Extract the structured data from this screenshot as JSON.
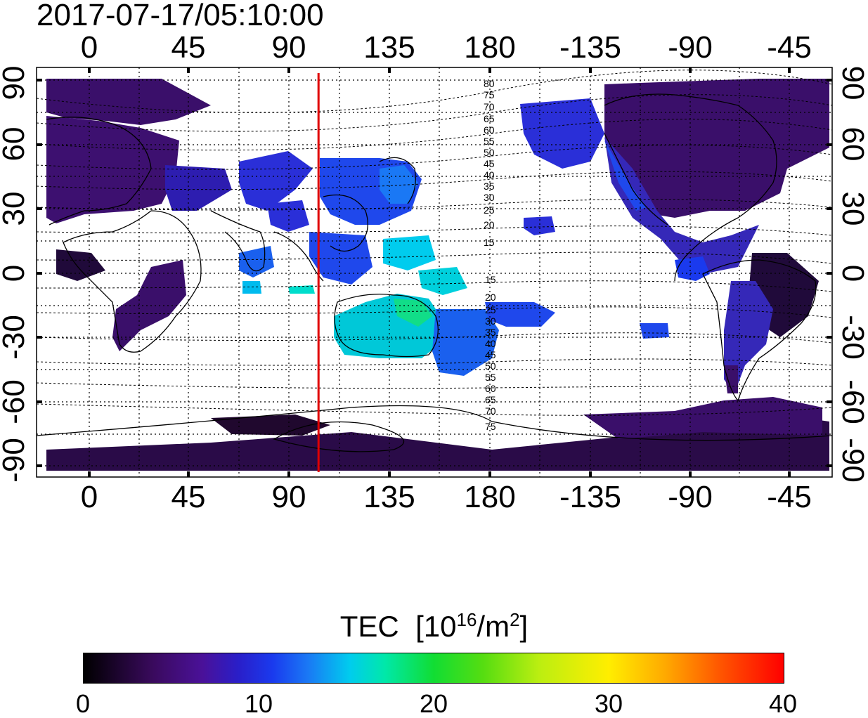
{
  "title": "2017-07-17/05:10:00",
  "x_ticks_top": [
    "0",
    "45",
    "90",
    "135",
    "180",
    "-135",
    "-90",
    "-45"
  ],
  "x_ticks_bottom": [
    "0",
    "45",
    "90",
    "135",
    "180",
    "-135",
    "-90",
    "-45"
  ],
  "y_ticks_left": [
    "90",
    "60",
    "30",
    "0",
    "-30",
    "-60",
    "-90"
  ],
  "y_ticks_right": [
    "90",
    "60",
    "30",
    "0",
    "-30",
    "-60",
    "-90"
  ],
  "contour_labels_north": [
    "80",
    "75",
    "70",
    "65",
    "60",
    "55",
    "50",
    "45",
    "40",
    "35",
    "30",
    "25",
    "20",
    "15"
  ],
  "contour_labels_south": [
    "15",
    "20",
    "25",
    "30",
    "35",
    "40",
    "45",
    "50",
    "55",
    "60",
    "65",
    "70",
    "75"
  ],
  "colorbar": {
    "title_text": "TEC",
    "title_unit_prefix": "[10",
    "title_exp": "16",
    "title_unit_mid": "/m",
    "title_exp2": "2",
    "title_unit_suffix": "]",
    "min_label": "0",
    "labels": [
      "0",
      "10",
      "20",
      "30",
      "40"
    ]
  },
  "terminator_longitude": 103,
  "colors": {
    "terminator": "#e00000",
    "land_low": "#3a0a5e",
    "mid": "#1a3aee",
    "high": "#00e8aa"
  }
}
